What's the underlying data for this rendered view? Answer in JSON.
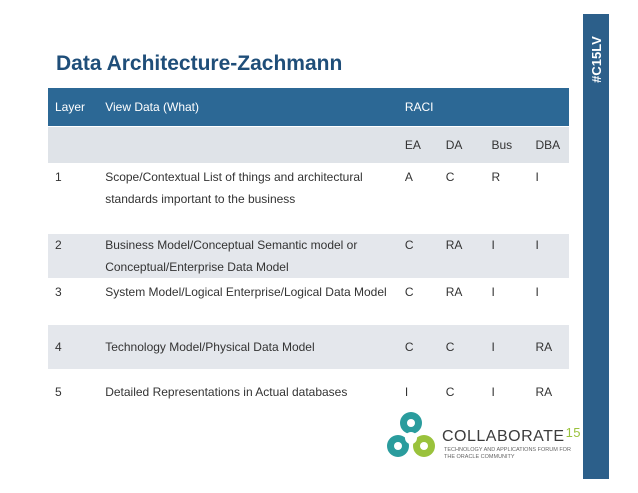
{
  "slide": {
    "title": "Data Architecture-Zachmann",
    "hashtag": "#C15LV"
  },
  "table": {
    "header": {
      "layer": "Layer",
      "view": "View Data (What)",
      "raci": "RACI"
    },
    "raci_columns": [
      "EA",
      "DA",
      "Bus",
      "DBA"
    ],
    "rows": [
      {
        "layer": "1",
        "view": "Scope/Contextual List of things and architectural standards important to the business",
        "ea": "A",
        "da": "C",
        "bus": "R",
        "dba": "I"
      },
      {
        "layer": "2",
        "view": "Business Model/Conceptual Semantic model or Conceptual/Enterprise Data Model",
        "ea": "C",
        "da": "RA",
        "bus": "I",
        "dba": "I"
      },
      {
        "layer": "3",
        "view": "System Model/Logical Enterprise/Logical Data Model",
        "ea": "C",
        "da": "RA",
        "bus": "I",
        "dba": "I"
      },
      {
        "layer": "4",
        "view": "Technology Model/Physical Data Model",
        "ea": "C",
        "da": "C",
        "bus": "I",
        "dba": "RA"
      },
      {
        "layer": "5",
        "view": "Detailed Representations in Actual databases",
        "ea": "I",
        "da": "C",
        "bus": "I",
        "dba": "RA"
      }
    ]
  },
  "footer": {
    "brand": "COLLABORATE",
    "brand_number": "15",
    "tagline": "Technology and Applications Forum for the Oracle Community"
  },
  "colors": {
    "title": "#1f4e79",
    "header_bg": "#2c6895",
    "side_bar": "#2c5f8a",
    "row_shade": "#e4e7ec",
    "logo_teal": "#2a9c9d",
    "logo_green": "#9ac23c"
  }
}
